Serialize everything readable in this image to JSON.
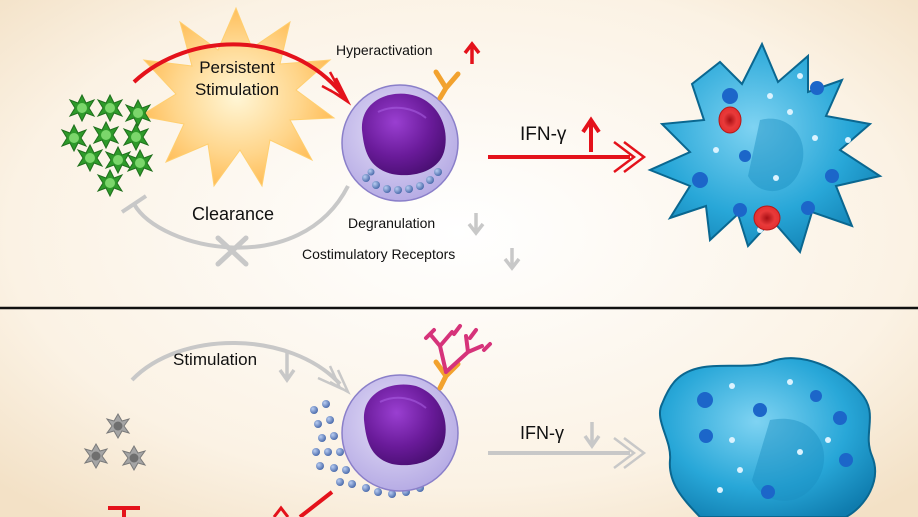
{
  "top_panel": {
    "burst_label_line1": "Persistent",
    "burst_label_line2": "Stimulation",
    "hyperactivation_label": "Hyperactivation",
    "clearance_label": "Clearance",
    "degranulation_label": "Degranulation",
    "costimulatory_label": "Costimulatory Receptors",
    "ifn_label": "IFN-γ"
  },
  "bottom_panel": {
    "stimulation_label": "Stimulation",
    "ifn_label": "IFN-γ"
  },
  "colors": {
    "background_center": "#ffffff",
    "background_edge": "#f6e6cf",
    "increase_arrow": "#e4121b",
    "decrease_arrow": "#c8c8c8",
    "pathogen_active": "#2e9a2a",
    "pathogen_inactive": "#9a9a9a",
    "nk_cell_nucleus": "#6a1b9a",
    "nk_cell_cytoplasm": "#c9c1ea",
    "granule": "#5b7fc4",
    "receptor_active": "#f2a22e",
    "receptor_inhibitory": "#d6337a",
    "macrophage": "#1fa3d8",
    "red_blood_cell": "#e32b2b",
    "divider": "#111111"
  }
}
